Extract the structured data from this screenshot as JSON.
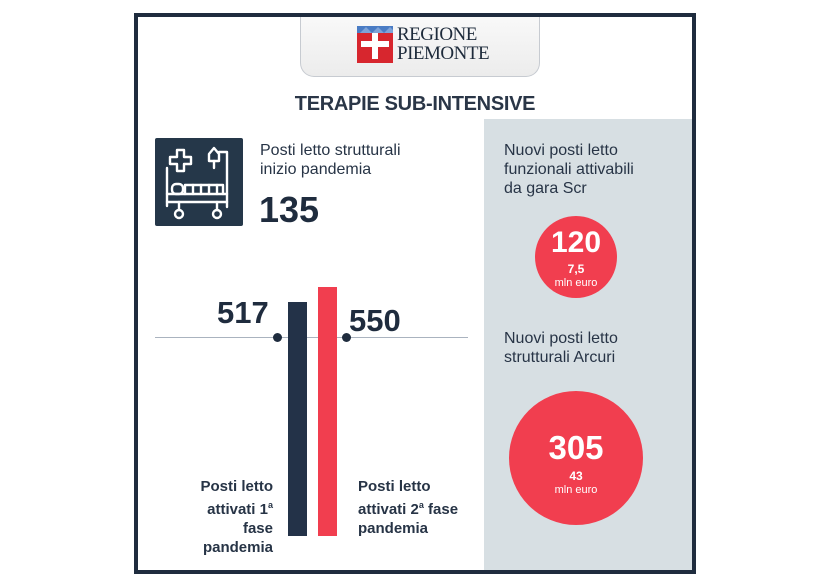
{
  "header": {
    "region_line1": "REGIONE",
    "region_line2": "PIEMONTE",
    "title": "TERAPIE SUB-INTENSIVE"
  },
  "icon": "hospital-bed-icon",
  "initial_beds": {
    "label_line1": "Posti letto strutturali",
    "label_line2": "inizio pandemia",
    "value": "135"
  },
  "chart_data": {
    "type": "bar",
    "categories": [
      "Posti letto attivati 1ª fase pandemia",
      "Posti letto attivati 2ª fase pandemia"
    ],
    "values": [
      517,
      550
    ],
    "bar_colors": [
      "#233248",
      "#f13e4f"
    ]
  },
  "phase1": {
    "value": "517",
    "label_line1": "Posti letto",
    "label_line2a": "attivati 1",
    "label_line2sup": "a",
    "label_line2b": " fase",
    "label_line3": "pandemia"
  },
  "phase2": {
    "value": "550",
    "label_line1": "Posti letto",
    "label_line2a": "attivati 2",
    "label_line2sup": "a",
    "label_line2b": " fase",
    "label_line3": "pandemia"
  },
  "gara_scr": {
    "label_line1": "Nuovi posti letto",
    "label_line2": "funzionali attivabili",
    "label_line3": "da gara Scr",
    "value": "120",
    "amount": "7,5",
    "unit": "mln euro"
  },
  "arcuri": {
    "label_line1": "Nuovi posti letto",
    "label_line2": "strutturali Arcuri",
    "value": "305",
    "amount": "43",
    "unit": "mln euro"
  },
  "colors": {
    "navy": "#1f2c3e",
    "red": "#f13e4f",
    "panel": "#d7dfe3"
  }
}
